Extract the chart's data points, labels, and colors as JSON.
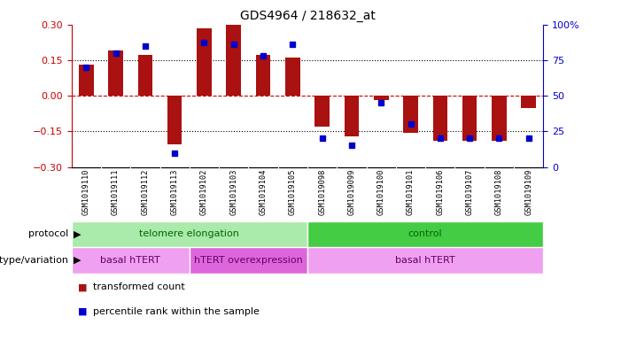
{
  "title": "GDS4964 / 218632_at",
  "samples": [
    "GSM1019110",
    "GSM1019111",
    "GSM1019112",
    "GSM1019113",
    "GSM1019102",
    "GSM1019103",
    "GSM1019104",
    "GSM1019105",
    "GSM1019098",
    "GSM1019099",
    "GSM1019100",
    "GSM1019101",
    "GSM1019106",
    "GSM1019107",
    "GSM1019108",
    "GSM1019109"
  ],
  "transformed_count": [
    0.13,
    0.19,
    0.17,
    -0.205,
    0.285,
    0.3,
    0.17,
    0.16,
    -0.13,
    -0.17,
    -0.02,
    -0.155,
    -0.19,
    -0.19,
    -0.19,
    -0.05
  ],
  "percentile_rank": [
    70,
    80,
    85,
    10,
    87,
    86,
    78,
    86,
    20,
    15,
    45,
    30,
    20,
    20,
    20,
    20
  ],
  "bar_color": "#aa1111",
  "dot_color": "#0000cc",
  "ylim_left": [
    -0.3,
    0.3
  ],
  "ylim_right": [
    0,
    100
  ],
  "yticks_left": [
    -0.3,
    -0.15,
    0,
    0.15,
    0.3
  ],
  "yticks_right": [
    0,
    25,
    50,
    75,
    100
  ],
  "ytick_labels_right": [
    "0",
    "25",
    "50",
    "75",
    "100%"
  ],
  "dotted_lines": [
    -0.15,
    0.15
  ],
  "protocol_labels": [
    {
      "text": "telomere elongation",
      "start": 0,
      "end": 8,
      "bg": "#aaeaaa"
    },
    {
      "text": "control",
      "start": 8,
      "end": 16,
      "bg": "#44cc44"
    }
  ],
  "genotype_labels": [
    {
      "text": "basal hTERT",
      "start": 0,
      "end": 4,
      "bg": "#f0a0f0"
    },
    {
      "text": "hTERT overexpression",
      "start": 4,
      "end": 8,
      "bg": "#dd66dd"
    },
    {
      "text": "basal hTERT",
      "start": 8,
      "end": 16,
      "bg": "#f0a0f0"
    }
  ],
  "legend_items": [
    {
      "color": "#aa1111",
      "label": "transformed count"
    },
    {
      "color": "#0000cc",
      "label": "percentile rank within the sample"
    }
  ],
  "protocol_row_label": "protocol",
  "genotype_row_label": "genotype/variation",
  "bg_color": "#ffffff",
  "bar_width": 0.5
}
